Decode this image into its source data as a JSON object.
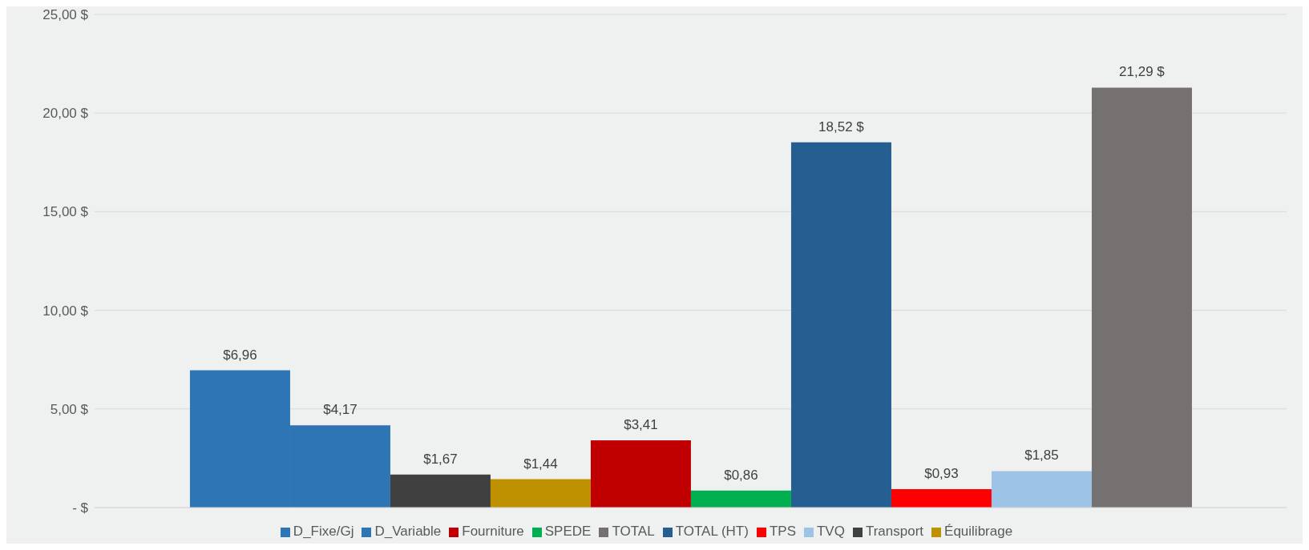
{
  "chart_data": {
    "type": "bar",
    "categories": [
      null
    ],
    "series": [
      {
        "name": "D_Variable",
        "color": "#2e75b6",
        "values": [
          6.96
        ],
        "value_labels": [
          "$6,96"
        ]
      },
      {
        "name": "D_Fixe/Gj",
        "color": "#2e75b6",
        "values": [
          4.17
        ],
        "value_labels": [
          "$4,17"
        ]
      },
      {
        "name": "Transport",
        "color": "#404040",
        "values": [
          1.67
        ],
        "value_labels": [
          "$1,67"
        ]
      },
      {
        "name": "Équilibrage",
        "color": "#bf9000",
        "values": [
          1.44
        ],
        "value_labels": [
          "$1,44"
        ]
      },
      {
        "name": "Fourniture",
        "color": "#c00000",
        "values": [
          3.41
        ],
        "value_labels": [
          "$3,41"
        ]
      },
      {
        "name": "SPEDE",
        "color": "#00b050",
        "values": [
          0.86
        ],
        "value_labels": [
          "$0,86"
        ]
      },
      {
        "name": "TOTAL (HT)",
        "color": "#255e91",
        "values": [
          18.52
        ],
        "value_labels": [
          "18,52 $"
        ]
      },
      {
        "name": "TPS",
        "color": "#ff0000",
        "values": [
          0.93
        ],
        "value_labels": [
          "$0,93"
        ]
      },
      {
        "name": "TVQ",
        "color": "#9dc3e6",
        "values": [
          1.85
        ],
        "value_labels": [
          "$1,85"
        ]
      },
      {
        "name": "TOTAL",
        "color": "#767171",
        "values": [
          21.29
        ],
        "value_labels": [
          "21,29 $"
        ]
      }
    ],
    "ylim": [
      0,
      25
    ],
    "yticks": [
      {
        "value": 0,
        "label": "-   $"
      },
      {
        "value": 5,
        "label": "5,00 $"
      },
      {
        "value": 10,
        "label": "10,00 $"
      },
      {
        "value": 15,
        "label": "15,00 $"
      },
      {
        "value": 20,
        "label": "20,00 $"
      },
      {
        "value": 25,
        "label": "25,00 $"
      }
    ],
    "grid": "y",
    "legend": "bottom"
  }
}
